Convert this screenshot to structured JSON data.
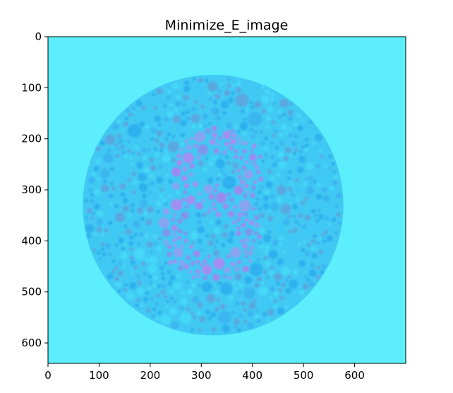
{
  "chart_data": {
    "type": "image",
    "title": "Minimize_E_image",
    "xlabel": "",
    "ylabel": "",
    "xlim": [
      0,
      700
    ],
    "ylim": [
      640,
      0
    ],
    "x_ticks": [
      0,
      100,
      200,
      300,
      400,
      500,
      600
    ],
    "y_ticks": [
      0,
      100,
      200,
      300,
      400,
      500,
      600
    ],
    "grid": false,
    "image": {
      "description_kind": "color-blindness test plate",
      "hidden_digit": "8",
      "background_color": "#5CEEFC",
      "plate_center": [
        323,
        330
      ],
      "plate_radius": 255,
      "dot_colors_background": [
        "#3EC8F5",
        "#2DB1EE",
        "#44D8F8",
        "#5AA8E0",
        "#3AB6F0"
      ],
      "dot_colors_figure": [
        "#8AA2F2",
        "#9B8BF0",
        "#7F96EE",
        "#A38EF2"
      ]
    },
    "colors": {
      "axis": "#000000",
      "background_plate": "#41C9F3"
    }
  }
}
